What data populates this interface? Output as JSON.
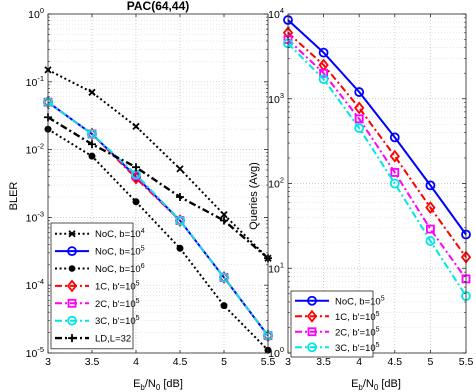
{
  "chart_data": [
    {
      "type": "line",
      "title": "PAC(64,44)",
      "xlabel_base": "E",
      "xlabel_sub": "b",
      "xlabel_mid": "/N",
      "xlabel_sub2": "0",
      "xlabel_tail": " [dB]",
      "ylabel": "BLER",
      "yscale": "log",
      "xlim": [
        3,
        5.5
      ],
      "ylim": [
        1e-05,
        1
      ],
      "grid": true,
      "legend_position": "bottom-left",
      "xticks": [
        "3",
        "3.5",
        "4",
        "4.5",
        "5",
        "5.5"
      ],
      "yticks": [
        {
          "base": "10",
          "exp": "0"
        },
        {
          "base": "10",
          "exp": "-1"
        },
        {
          "base": "10",
          "exp": "-2"
        },
        {
          "base": "10",
          "exp": "-3"
        },
        {
          "base": "10",
          "exp": "-4"
        },
        {
          "base": "10",
          "exp": "-5"
        }
      ],
      "series": [
        {
          "name": "NoC, b=10",
          "name_sup": "4",
          "color": "#000000",
          "marker": "x",
          "dash": "2,2.6",
          "width": 2,
          "x": [
            3,
            3.5,
            4,
            4.5,
            5,
            5.5
          ],
          "y": [
            0.15,
            0.07,
            0.022,
            0.0052,
            0.0011,
            0.00025
          ]
        },
        {
          "name": "NoC, b=10",
          "name_sup": "5",
          "color": "#0000ff",
          "marker": "o",
          "dash": "",
          "width": 2,
          "x": [
            3,
            3.5,
            4,
            4.5,
            5,
            5.5
          ],
          "y": [
            0.05,
            0.017,
            0.004,
            0.0009,
            0.00013,
            1.8e-05
          ]
        },
        {
          "name": "NoC, b=10",
          "name_sup": "6",
          "color": "#000000",
          "marker": "dot",
          "dash": "2,2.6",
          "width": 2,
          "x": [
            3,
            3.5,
            4,
            4.5,
            5,
            5.5
          ],
          "y": [
            0.02,
            0.008,
            0.0017,
            0.00035,
            5e-05,
            1.1e-05
          ]
        },
        {
          "name": "1C, b'=10",
          "name_sup": "5",
          "color": "#ff0000",
          "marker": "diamond",
          "dash": "7,3,2,3",
          "width": 2,
          "x": [
            3,
            3.5,
            4,
            4.5,
            5,
            5.5
          ],
          "y": [
            0.05,
            0.017,
            0.0038,
            0.0009,
            0.00013,
            1.8e-05
          ]
        },
        {
          "name": "2C, b'=10",
          "name_sup": "5",
          "color": "#ff00ff",
          "marker": "square",
          "dash": "7,3,2,3",
          "width": 2,
          "x": [
            3,
            3.5,
            4,
            4.5,
            5,
            5.5
          ],
          "y": [
            0.05,
            0.017,
            0.0041,
            0.0009,
            0.00013,
            1.8e-05
          ]
        },
        {
          "name": "3C, b'=10",
          "name_sup": "5",
          "color": "#00e5e5",
          "marker": "o",
          "dash": "7,3,2,3",
          "width": 2,
          "x": [
            3,
            3.5,
            4,
            4.5,
            5,
            5.5
          ],
          "y": [
            0.05,
            0.017,
            0.0043,
            0.0009,
            0.00013,
            1.8e-05
          ]
        },
        {
          "name": "LD,L=32",
          "name_sup": "",
          "color": "#000000",
          "marker": "plus",
          "dash": "7,3,2,3",
          "width": 2.4,
          "x": [
            3,
            3.5,
            4,
            4.5,
            5,
            5.5
          ],
          "y": [
            0.03,
            0.012,
            0.0055,
            0.002,
            0.0009,
            0.00025
          ]
        }
      ]
    },
    {
      "type": "line",
      "title": "",
      "xlabel_base": "E",
      "xlabel_sub": "b",
      "xlabel_mid": "/N",
      "xlabel_sub2": "0",
      "xlabel_tail": " [dB]",
      "ylabel": "Queries (Avg)",
      "yscale": "log",
      "xlim": [
        3,
        5.5
      ],
      "ylim": [
        1,
        10000
      ],
      "grid": true,
      "legend_position": "bottom-left",
      "xticks": [
        "3",
        "3.5",
        "4",
        "4.5",
        "5",
        "5.5"
      ],
      "yticks": [
        {
          "base": "10",
          "exp": "4"
        },
        {
          "base": "10",
          "exp": "3"
        },
        {
          "base": "10",
          "exp": "2"
        },
        {
          "base": "10",
          "exp": "1"
        },
        {
          "base": "10",
          "exp": "0"
        }
      ],
      "series": [
        {
          "name": "NoC, b=10",
          "name_sup": "5",
          "color": "#0000ff",
          "marker": "o",
          "dash": "",
          "width": 2,
          "x": [
            3,
            3.5,
            4,
            4.5,
            5,
            5.5
          ],
          "y": [
            8500,
            3500,
            1200,
            350,
            95,
            25
          ]
        },
        {
          "name": "1C, b'=10",
          "name_sup": "5",
          "color": "#ff0000",
          "marker": "diamond",
          "dash": "7,3,2,3",
          "width": 2,
          "x": [
            3,
            3.5,
            4,
            4.5,
            5,
            5.5
          ],
          "y": [
            6000,
            2500,
            780,
            210,
            52,
            13.5
          ]
        },
        {
          "name": "2C, b'=10",
          "name_sup": "5",
          "color": "#ff00ff",
          "marker": "square",
          "dash": "7,3,2,3",
          "width": 2,
          "x": [
            3,
            3.5,
            4,
            4.5,
            5,
            5.5
          ],
          "y": [
            5000,
            2000,
            580,
            135,
            29,
            7.5
          ]
        },
        {
          "name": "3C, b'=10",
          "name_sup": "5",
          "color": "#00e5e5",
          "marker": "o",
          "dash": "7,3,2,3",
          "width": 2,
          "x": [
            3,
            3.5,
            4,
            4.5,
            5,
            5.5
          ],
          "y": [
            4500,
            1700,
            450,
            100,
            21,
            4.7
          ]
        }
      ]
    }
  ]
}
